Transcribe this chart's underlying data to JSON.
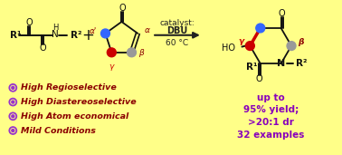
{
  "background_color": "#FFFF88",
  "border_color": "#CCCC00",
  "bullet_color": "#9933CC",
  "bullet_text_color": "#8B0000",
  "bullet_items": [
    "High Regioselective",
    "High Diastereoselective",
    "High Atom economical",
    "Mild Conditions"
  ],
  "result_lines": [
    "up to",
    "95% yield;",
    ">20:1 dr",
    "32 examples"
  ],
  "result_color": "#8800BB",
  "temp_text": "60 °C",
  "catalyst_color": "#222222",
  "arrow_color": "#222222",
  "structure_color": "#111111",
  "blue_dot": "#3366FF",
  "red_dot": "#CC0000",
  "gray_dot": "#999999",
  "red_bond": "#CC0000",
  "greek_alpha": "α",
  "greek_alpha_prime": "α'",
  "greek_beta": "β",
  "greek_gamma": "γ",
  "label_color_alpha": "#8B0000",
  "label_color_beta": "#8B0000",
  "label_color_gamma": "#CC0000",
  "label_color_gamma_product": "#CC0000",
  "label_color_beta_product": "#8B0000"
}
